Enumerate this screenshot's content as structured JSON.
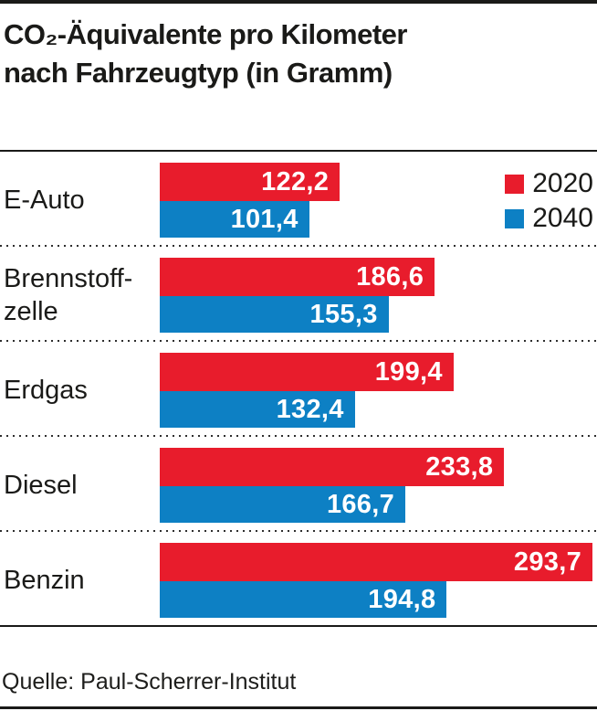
{
  "title": {
    "line1": "CO₂-Äquivalente pro Kilometer",
    "line2": "nach Fahrzeugtyp (in Gramm)"
  },
  "source": "Quelle: Paul-Scherrer-Institut",
  "colors": {
    "series_2020": "#e81c2c",
    "series_2040": "#0d80c4",
    "text": "#1a1a18",
    "value_label": "#ffffff"
  },
  "chart_data": {
    "type": "bar",
    "orientation": "horizontal",
    "title": "CO₂-Äquivalente pro Kilometer nach Fahrzeugtyp (in Gramm)",
    "categories": [
      "E-Auto",
      "Brennstoff-\nzelle",
      "Erdgas",
      "Diesel",
      "Benzin"
    ],
    "series": [
      {
        "name": "2020",
        "color": "#e81c2c",
        "values": [
          122.2,
          186.6,
          199.4,
          233.8,
          293.7
        ],
        "labels": [
          "122,2",
          "186,6",
          "199,4",
          "233,8",
          "293,7"
        ]
      },
      {
        "name": "2040",
        "color": "#0d80c4",
        "values": [
          101.4,
          155.3,
          132.4,
          166.7,
          194.8
        ],
        "labels": [
          "101,4",
          "155,3",
          "132,4",
          "166,7",
          "194,8"
        ]
      }
    ],
    "xmax": 293.7,
    "value_labels": "inside-end",
    "legend_position": "top-right",
    "grid": "off"
  }
}
